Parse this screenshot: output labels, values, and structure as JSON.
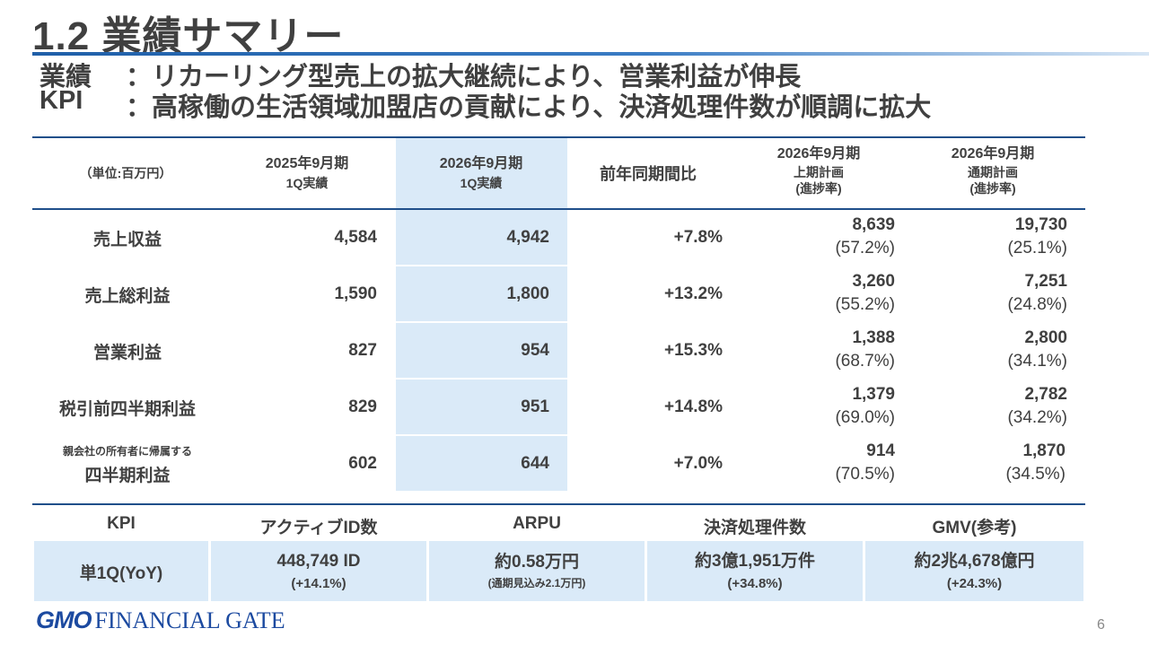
{
  "title": "1.2  業績サマリー",
  "subtitle": {
    "line1_key": "業績",
    "line1_text": "：リカーリング型売上の拡大継続により、営業利益が伸長",
    "line2_key": "KPI",
    "line2_text": "：高稼働の生活領域加盟店の貢献により、決済処理件数が順調に拡大"
  },
  "table": {
    "unit": "（単位:百万円）",
    "headers": {
      "fy2025": [
        "2025年9月期",
        "1Q実績"
      ],
      "fy2026": [
        "2026年9月期",
        "1Q実績"
      ],
      "yoy": "前年同期間比",
      "h1plan": [
        "2026年9月期",
        "上期計画",
        "(進捗率)"
      ],
      "fullplan": [
        "2026年9月期",
        "通期計画",
        "(進捗率)"
      ]
    },
    "rows": [
      {
        "label": "売上収益",
        "fy2025": "4,584",
        "fy2026": "4,942",
        "yoy": "+7.8%",
        "h1": "8,639",
        "h1p": "(57.2%)",
        "full": "19,730",
        "fullp": "(25.1%)"
      },
      {
        "label": "売上総利益",
        "fy2025": "1,590",
        "fy2026": "1,800",
        "yoy": "+13.2%",
        "h1": "3,260",
        "h1p": "(55.2%)",
        "full": "7,251",
        "fullp": "(24.8%)"
      },
      {
        "label": "営業利益",
        "fy2025": "827",
        "fy2026": "954",
        "yoy": "+15.3%",
        "h1": "1,388",
        "h1p": "(68.7%)",
        "full": "2,800",
        "fullp": "(34.1%)"
      },
      {
        "label": "税引前四半期利益",
        "fy2025": "829",
        "fy2026": "951",
        "yoy": "+14.8%",
        "h1": "1,379",
        "h1p": "(69.0%)",
        "full": "2,782",
        "fullp": "(34.2%)"
      },
      {
        "label_small": "親会社の所有者に帰属する",
        "label": "四半期利益",
        "fy2025": "602",
        "fy2026": "644",
        "yoy": "+7.0%",
        "h1": "914",
        "h1p": "(70.5%)",
        "full": "1,870",
        "fullp": "(34.5%)"
      }
    ]
  },
  "kpi": {
    "headers": [
      "KPI",
      "アクティブID数",
      "ARPU",
      "決済処理件数",
      "GMV(参考)"
    ],
    "row_label": "単1Q(YoY)",
    "cells": [
      {
        "main": "448,749 ID",
        "sub": "(+14.1%)"
      },
      {
        "main": "約0.58万円",
        "sub": "(通期見込み2.1万円)"
      },
      {
        "main": "約3億1,951万件",
        "sub": "(+34.8%)"
      },
      {
        "main": "約2兆4,678億円",
        "sub": "(+24.3%)"
      }
    ]
  },
  "footer": {
    "logo_gmo": "GMO",
    "logo_text": "FINANCIAL GATE",
    "page_number": "6"
  },
  "colors": {
    "accent_blue": "#1f4f8a",
    "highlight_fill": "#daeaf8",
    "text": "#404040",
    "logo_blue": "#1c4aa0"
  }
}
